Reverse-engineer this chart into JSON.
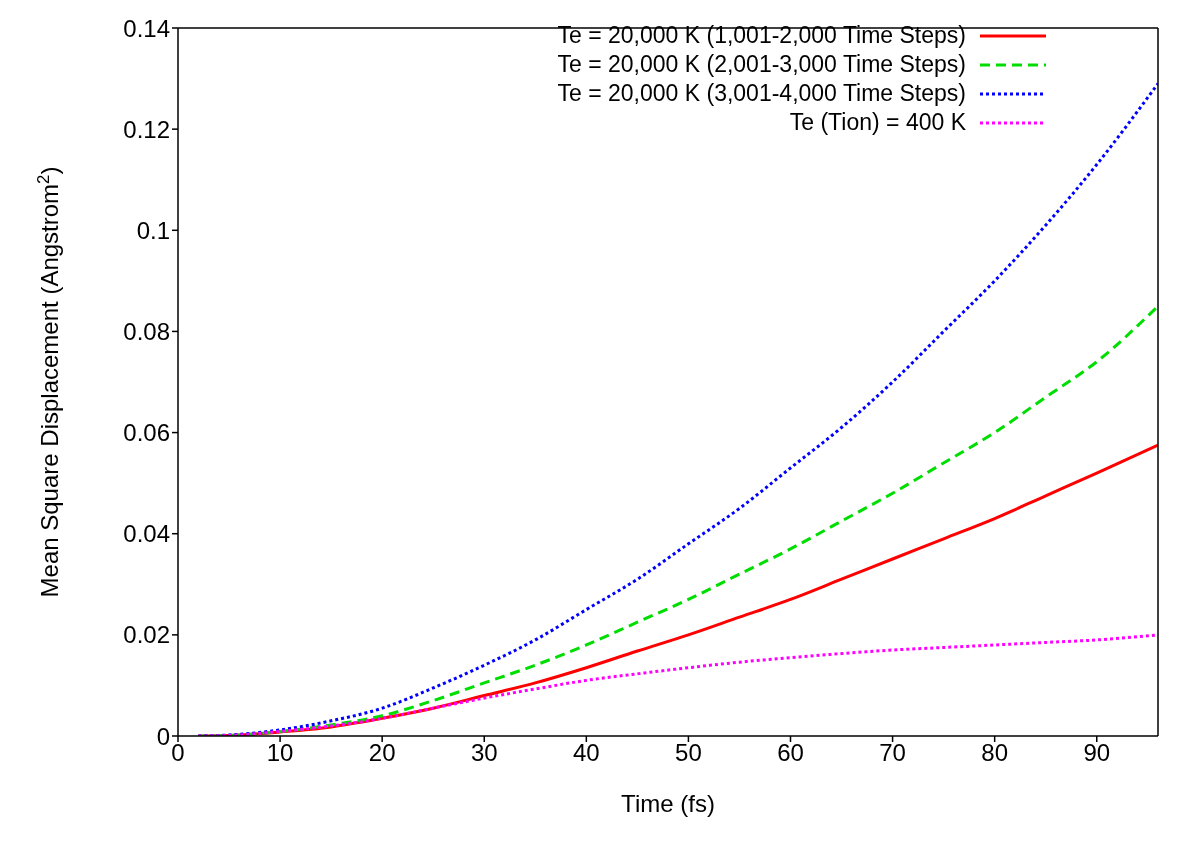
{
  "chart_data": {
    "type": "line",
    "xlabel": "Time (fs)",
    "ylabel": "Mean Square Displacement (Angstrom$^{2}$)",
    "x": [
      2,
      5,
      10,
      15,
      20,
      25,
      30,
      35,
      40,
      45,
      50,
      55,
      60,
      65,
      70,
      75,
      80,
      85,
      90,
      96
    ],
    "series": [
      {
        "name": "Te = 20,000 K (1,001-2,000 Time Steps)",
        "color": "#ff0000",
        "line_style": "solid",
        "values": [
          0,
          0.0001,
          0.0008,
          0.0018,
          0.0035,
          0.0055,
          0.008,
          0.0105,
          0.0135,
          0.0168,
          0.02,
          0.0235,
          0.027,
          0.031,
          0.035,
          0.039,
          0.043,
          0.0475,
          0.052,
          0.0575
        ]
      },
      {
        "name": "Te = 20,000 K (2,001-3,000 Time Steps)",
        "color": "#00dd00",
        "line_style": "dashed",
        "values": [
          0,
          0.0001,
          0.0009,
          0.0022,
          0.004,
          0.007,
          0.0105,
          0.014,
          0.018,
          0.0225,
          0.027,
          0.032,
          0.037,
          0.0425,
          0.048,
          0.054,
          0.06,
          0.067,
          0.074,
          0.085
        ]
      },
      {
        "name": "Te = 20,000 K (3,001-4,000 Time Steps)",
        "color": "#0000ff",
        "line_style": "dotted",
        "values": [
          0,
          0.0002,
          0.0012,
          0.003,
          0.0055,
          0.0095,
          0.014,
          0.019,
          0.025,
          0.031,
          0.038,
          0.045,
          0.053,
          0.061,
          0.07,
          0.08,
          0.09,
          0.101,
          0.113,
          0.129
        ]
      },
      {
        "name": "Te (Tion) = 400 K",
        "color": "#ff00ff",
        "line_style": "dotted",
        "values": [
          0,
          0.0001,
          0.0009,
          0.002,
          0.0035,
          0.0055,
          0.0075,
          0.0093,
          0.011,
          0.0123,
          0.0135,
          0.0146,
          0.0155,
          0.0163,
          0.017,
          0.0175,
          0.018,
          0.0185,
          0.019,
          0.02
        ]
      }
    ],
    "xlim": [
      0,
      96
    ],
    "xticks": [
      0,
      10,
      20,
      30,
      40,
      50,
      60,
      70,
      80,
      90
    ],
    "ylim": [
      0,
      0.14
    ],
    "yticks": [
      0,
      0.02,
      0.04,
      0.06,
      0.08,
      0.1,
      0.12,
      0.14
    ],
    "grid": false,
    "legend": "top right",
    "marker": "none"
  }
}
